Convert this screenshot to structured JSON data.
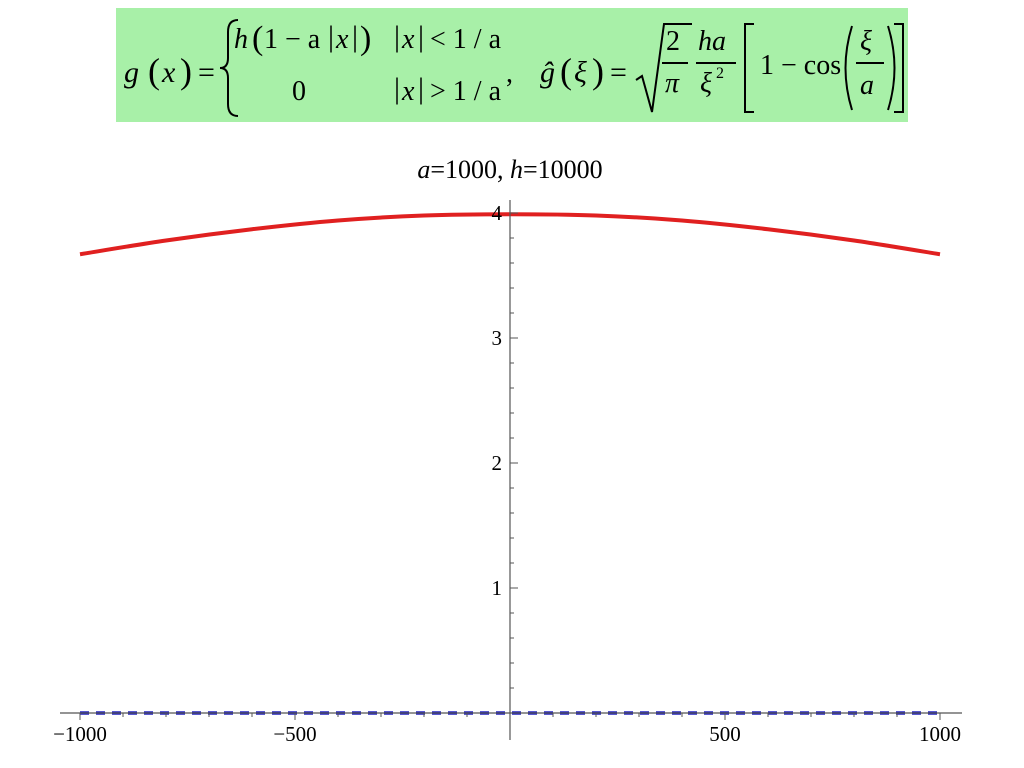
{
  "formula": {
    "g_lhs": "g",
    "g_arg": "x",
    "eq": "=",
    "row1_expr_h": "h",
    "row1_expr_rest": "1 − a",
    "row1_abs_x": "x",
    "row1_cond": "< 1 / a",
    "row2_expr": "0",
    "row2_cond": "> 1 / a",
    "abs_x": "x",
    "comma": ",",
    "ghat_lhs": "ĝ",
    "ghat_arg": "ξ",
    "frac1_num": "2",
    "frac1_den": "π",
    "frac2_num": "ha",
    "frac2_den": "ξ",
    "frac2_den_exp": "2",
    "bracket_one": "1 − cos",
    "frac3_num": "ξ",
    "frac3_den": "a"
  },
  "chart_data": {
    "type": "line",
    "title_parts": [
      {
        "text": "a",
        "italic": true
      },
      {
        "text": "=1000, ",
        "italic": false
      },
      {
        "text": "h",
        "italic": true
      },
      {
        "text": "=10000",
        "italic": false
      }
    ],
    "xlim": [
      -1000,
      1000
    ],
    "ylim": [
      0,
      4
    ],
    "x_ticks": [
      {
        "value": -1000,
        "label": "−1000"
      },
      {
        "value": -500,
        "label": "−500"
      },
      {
        "value": 500,
        "label": "500"
      },
      {
        "value": 1000,
        "label": "1000"
      }
    ],
    "y_ticks": [
      {
        "value": 1,
        "label": "1"
      },
      {
        "value": 2,
        "label": "2"
      },
      {
        "value": 3,
        "label": "3"
      },
      {
        "value": 4,
        "label": "4"
      }
    ],
    "series": [
      {
        "color": "#e02020",
        "style": "solid",
        "x": [
          -1000,
          -800,
          -600,
          -400,
          -200,
          0,
          200,
          400,
          600,
          800,
          1000
        ],
        "y": [
          3.67,
          3.78,
          3.87,
          3.94,
          3.98,
          3.99,
          3.98,
          3.94,
          3.87,
          3.78,
          3.67
        ]
      },
      {
        "color": "#2020c0",
        "style": "dashed",
        "x": [
          -1000,
          1000
        ],
        "y": [
          0,
          0
        ]
      }
    ]
  }
}
